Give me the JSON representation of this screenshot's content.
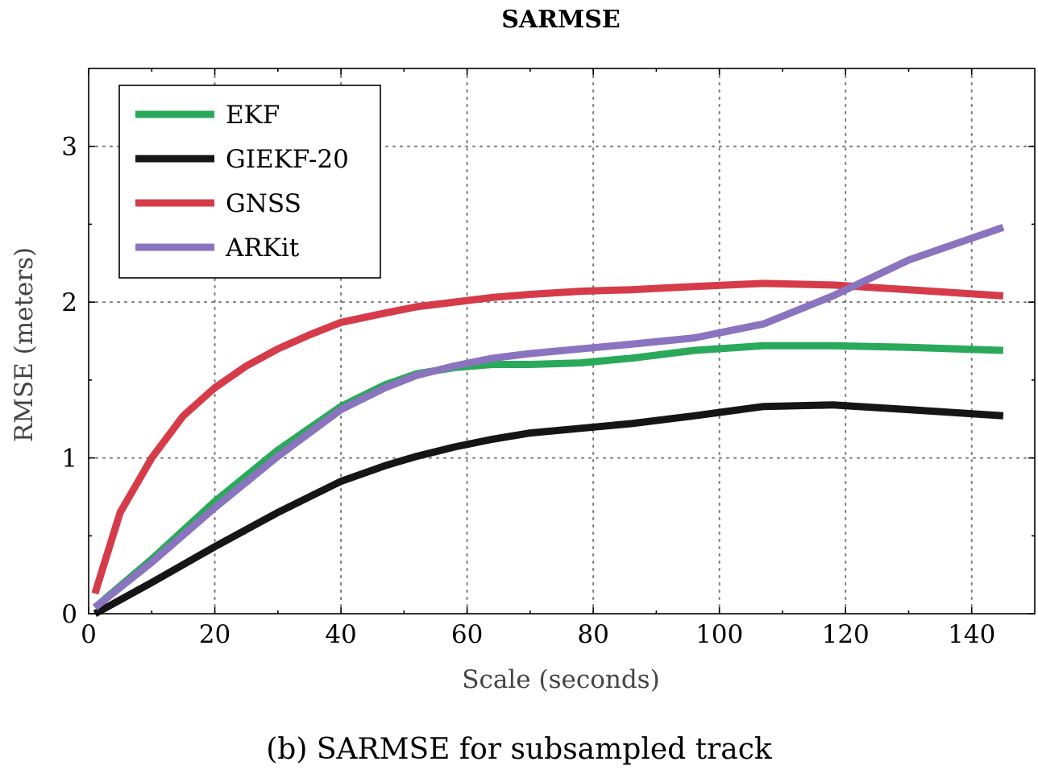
{
  "chart_data": {
    "type": "line",
    "title": "SARMSE",
    "xlabel": "Scale (seconds)",
    "ylabel": "RMSE (meters)",
    "caption": "(b) SARMSE for subsampled track",
    "xlim": [
      0,
      150
    ],
    "ylim": [
      0,
      3.5
    ],
    "xticks": [
      0,
      20,
      40,
      60,
      80,
      100,
      120,
      140
    ],
    "yticks": [
      0,
      1,
      2,
      3
    ],
    "grid": true,
    "legend_position": "top-left",
    "series": [
      {
        "name": "EKF",
        "color": "#2aa95a",
        "x": [
          1,
          10,
          20,
          30,
          40,
          47,
          52,
          58,
          64,
          70,
          78,
          86,
          96,
          107,
          118,
          130,
          145
        ],
        "y": [
          0.04,
          0.35,
          0.72,
          1.05,
          1.33,
          1.47,
          1.54,
          1.58,
          1.6,
          1.6,
          1.61,
          1.64,
          1.69,
          1.72,
          1.72,
          1.71,
          1.69
        ]
      },
      {
        "name": "GIEKF-20",
        "color": "#151515",
        "x": [
          1,
          10,
          20,
          30,
          40,
          47,
          52,
          58,
          64,
          70,
          78,
          86,
          96,
          107,
          118,
          130,
          145
        ],
        "y": [
          0.0,
          0.2,
          0.43,
          0.65,
          0.85,
          0.95,
          1.01,
          1.07,
          1.12,
          1.16,
          1.19,
          1.22,
          1.27,
          1.33,
          1.34,
          1.31,
          1.27
        ]
      },
      {
        "name": "GNSS",
        "color": "#d63b4a",
        "x": [
          1,
          5,
          10,
          15,
          20,
          25,
          30,
          35,
          40,
          47,
          52,
          58,
          64,
          70,
          78,
          86,
          96,
          107,
          118,
          130,
          145
        ],
        "y": [
          0.13,
          0.65,
          1.0,
          1.27,
          1.45,
          1.59,
          1.7,
          1.79,
          1.87,
          1.93,
          1.97,
          2.0,
          2.03,
          2.05,
          2.07,
          2.08,
          2.1,
          2.12,
          2.11,
          2.08,
          2.04
        ]
      },
      {
        "name": "ARKit",
        "color": "#8a74bf",
        "x": [
          1,
          10,
          20,
          30,
          40,
          47,
          52,
          58,
          64,
          70,
          78,
          86,
          96,
          107,
          118,
          130,
          145
        ],
        "y": [
          0.04,
          0.33,
          0.68,
          1.01,
          1.31,
          1.45,
          1.53,
          1.59,
          1.64,
          1.67,
          1.7,
          1.73,
          1.77,
          1.86,
          2.04,
          2.27,
          2.48
        ]
      }
    ]
  }
}
